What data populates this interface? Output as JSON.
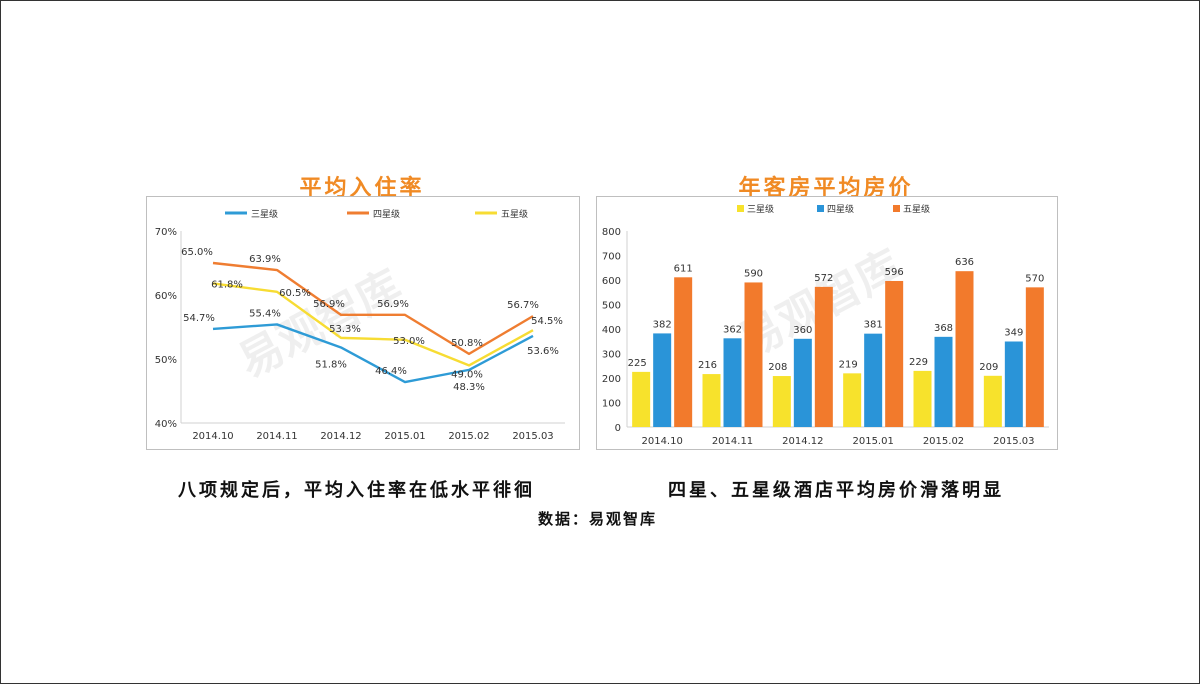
{
  "captions": {
    "left": "八项规定后，平均入住率在低水平徘徊",
    "right": "四星、五星级酒店平均房价滑落明显",
    "source": "数据：易观智库"
  },
  "watermark": "易观智库",
  "chart_data": [
    {
      "type": "line",
      "title": "平均入住率",
      "categories": [
        "2014.10",
        "2014.11",
        "2014.12",
        "2015.01",
        "2015.02",
        "2015.03"
      ],
      "ylim": [
        40,
        70
      ],
      "yticks": [
        "40%",
        "50%",
        "60%",
        "70%"
      ],
      "grid": false,
      "legend": "top",
      "series": [
        {
          "name": "三星级",
          "color": "#2e9bd6",
          "values": [
            54.7,
            55.4,
            51.8,
            46.4,
            48.3,
            53.6
          ],
          "labels": [
            "54.7%",
            "55.4%",
            "51.8%",
            "46.4%",
            "48.3%",
            "53.6%"
          ]
        },
        {
          "name": "四星级",
          "color": "#ef7d31",
          "values": [
            65.0,
            63.9,
            56.9,
            56.9,
            50.8,
            56.7
          ],
          "labels": [
            "65.0%",
            "63.9%",
            "56.9%",
            "56.9%",
            "50.8%",
            "56.7%"
          ]
        },
        {
          "name": "五星级",
          "color": "#f7dc33",
          "values": [
            61.8,
            60.5,
            53.3,
            53.0,
            49.0,
            54.5
          ],
          "labels": [
            "61.8%",
            "60.5%",
            "53.3%",
            "53.0%",
            "49.0%",
            "54.5%"
          ]
        }
      ]
    },
    {
      "type": "bar",
      "title": "年客房平均房价",
      "categories": [
        "2014.10",
        "2014.11",
        "2014.12",
        "2015.01",
        "2015.02",
        "2015.03"
      ],
      "ylim": [
        0,
        800
      ],
      "yticks": [
        "0",
        "100",
        "200",
        "300",
        "400",
        "500",
        "600",
        "700",
        "800"
      ],
      "grid": false,
      "legend": "top",
      "series": [
        {
          "name": "三星级",
          "color": "#f7e22c",
          "values": [
            225,
            216,
            208,
            219,
            229,
            209
          ],
          "labels": [
            "225",
            "216",
            "208",
            "219",
            "229",
            "209"
          ]
        },
        {
          "name": "四星级",
          "color": "#2a94d8",
          "values": [
            382,
            362,
            360,
            381,
            368,
            349
          ],
          "labels": [
            "382",
            "362",
            "360",
            "381",
            "368",
            "349"
          ]
        },
        {
          "name": "五星级",
          "color": "#f27a2c",
          "values": [
            611,
            590,
            572,
            596,
            636,
            570
          ],
          "labels": [
            "611",
            "590",
            "572",
            "596",
            "636",
            "570"
          ]
        }
      ]
    }
  ]
}
